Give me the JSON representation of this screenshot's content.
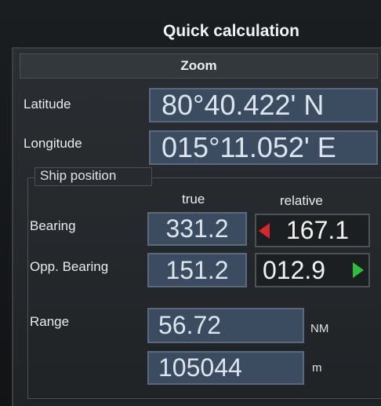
{
  "header": {
    "title": "Quick calculation",
    "section": "Zoom"
  },
  "position": {
    "latitude": {
      "label": "Latitude",
      "value": "80°40.422' N"
    },
    "longitude": {
      "label": "Longitude",
      "value": "015°11.052' E"
    }
  },
  "ship_position": {
    "title": "Ship position",
    "columns": [
      "true",
      "relative"
    ],
    "bearing": {
      "label": "Bearing",
      "true": "331.2",
      "relative": "167.1"
    },
    "opp_bearing": {
      "label": "Opp. Bearing",
      "true": "151.2",
      "relative": "012.9"
    }
  },
  "range": {
    "label": "Range",
    "nm": {
      "value": "56.72",
      "unit": "NM"
    },
    "m": {
      "value": "105044",
      "unit": "m"
    }
  }
}
